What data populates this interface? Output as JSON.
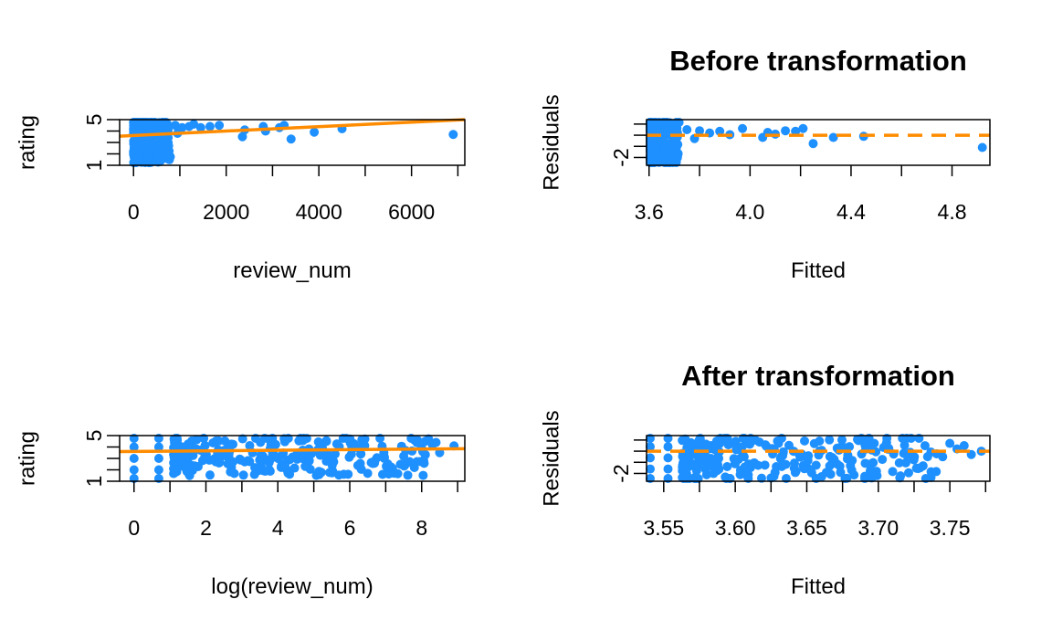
{
  "colors": {
    "points": "#1E90FF",
    "fit_line": "#FF8C00",
    "axis": "#000000",
    "background": "#FFFFFF"
  },
  "chart_data": [
    {
      "type": "scatter",
      "title": "",
      "xlabel": "review_num",
      "ylabel": "rating",
      "xlim": [
        -300,
        7150
      ],
      "ylim": [
        1,
        5
      ],
      "xticks": [
        0,
        1000,
        2000,
        3000,
        4000,
        5000,
        6000,
        7000
      ],
      "xtick_labels": [
        "0",
        "",
        "2000",
        "",
        "4000",
        "",
        "6000",
        ""
      ],
      "yticks": [
        1,
        2,
        3,
        4,
        5
      ],
      "ytick_labels": [
        "1",
        "",
        "",
        "",
        "5"
      ],
      "fit_line": {
        "x": [
          -300,
          7150
        ],
        "y": [
          3.55,
          5.0
        ],
        "style": "solid"
      },
      "points": [
        [
          1200,
          4.4
        ],
        [
          1300,
          4.6
        ],
        [
          1450,
          4.3
        ],
        [
          1650,
          4.4
        ],
        [
          1850,
          4.5
        ],
        [
          2350,
          3.5
        ],
        [
          2400,
          4.1
        ],
        [
          2800,
          4.4
        ],
        [
          2850,
          4.0
        ],
        [
          3150,
          4.3
        ],
        [
          3250,
          4.5
        ],
        [
          3400,
          3.3
        ],
        [
          3900,
          3.9
        ],
        [
          4500,
          4.2
        ],
        [
          6900,
          3.7
        ],
        [
          900,
          4.5
        ],
        [
          1050,
          4.3
        ],
        [
          750,
          4.4
        ],
        [
          600,
          4.1
        ],
        [
          950,
          3.8
        ]
      ],
      "dense_region": {
        "x": [
          0,
          800
        ],
        "y": [
          1,
          5
        ]
      }
    },
    {
      "type": "scatter",
      "title": "Before transformation",
      "xlabel": "Fitted",
      "ylabel": "Residuals",
      "xlim": [
        3.59,
        4.95
      ],
      "ylim": [
        -2.7,
        1.4
      ],
      "xticks": [
        3.6,
        3.8,
        4.0,
        4.2,
        4.4,
        4.6,
        4.8
      ],
      "xtick_labels": [
        "3.6",
        "",
        "4.0",
        "",
        "4.4",
        "",
        "4.8"
      ],
      "yticks": [
        -2,
        -1,
        0,
        1
      ],
      "ytick_labels": [
        "-2",
        "",
        "",
        ""
      ],
      "fit_line": {
        "x": [
          3.59,
          4.95
        ],
        "y": [
          0,
          0
        ],
        "style": "dashed"
      },
      "points": [
        [
          3.88,
          0.35
        ],
        [
          3.92,
          0.05
        ],
        [
          3.97,
          0.6
        ],
        [
          4.05,
          -0.2
        ],
        [
          4.07,
          0.25
        ],
        [
          4.1,
          0.1
        ],
        [
          4.14,
          0.4
        ],
        [
          4.18,
          0.35
        ],
        [
          4.21,
          0.6
        ],
        [
          4.25,
          -0.75
        ],
        [
          4.33,
          -0.2
        ],
        [
          4.45,
          -0.1
        ],
        [
          4.92,
          -1.1
        ],
        [
          3.8,
          0.4
        ],
        [
          3.84,
          0.2
        ],
        [
          3.75,
          0.5
        ],
        [
          3.78,
          -0.3
        ]
      ],
      "dense_region": {
        "x": [
          3.6,
          3.72
        ],
        "y": [
          -2.7,
          1.4
        ]
      }
    },
    {
      "type": "scatter",
      "title": "",
      "xlabel": "log(review_num)",
      "ylabel": "rating",
      "xlim": [
        -0.4,
        9.2
      ],
      "ylim": [
        1,
        5
      ],
      "xticks": [
        0,
        1,
        2,
        3,
        4,
        5,
        6,
        7,
        8,
        9
      ],
      "xtick_labels": [
        "0",
        "",
        "2",
        "",
        "4",
        "",
        "6",
        "",
        "8",
        ""
      ],
      "yticks": [
        1,
        2,
        3,
        4,
        5
      ],
      "ytick_labels": [
        "1",
        "",
        "",
        "",
        "5"
      ],
      "fit_line": {
        "x": [
          -0.4,
          9.2
        ],
        "y": [
          3.6,
          3.85
        ],
        "style": "solid"
      },
      "points": [
        [
          0,
          1
        ],
        [
          0,
          2
        ],
        [
          0,
          3
        ],
        [
          0,
          4
        ],
        [
          0,
          5
        ],
        [
          0.69,
          1
        ],
        [
          0.69,
          2
        ],
        [
          0.69,
          3
        ],
        [
          0.69,
          4
        ],
        [
          0.69,
          5
        ],
        [
          8.0,
          3.9
        ],
        [
          8.1,
          4.5
        ],
        [
          8.3,
          4.2
        ],
        [
          8.4,
          4.4
        ],
        [
          8.5,
          3.5
        ],
        [
          8.9,
          4.1
        ],
        [
          7.8,
          4.6
        ],
        [
          7.5,
          3.2
        ]
      ],
      "dense_region": {
        "x": [
          1.1,
          8.2
        ],
        "y": [
          1.5,
          5
        ]
      }
    },
    {
      "type": "scatter",
      "title": "After transformation",
      "xlabel": "Fitted",
      "ylabel": "Residuals",
      "xlim": [
        3.538,
        3.778
      ],
      "ylim": [
        -2.7,
        1.4
      ],
      "xticks": [
        3.55,
        3.575,
        3.6,
        3.625,
        3.65,
        3.675,
        3.7,
        3.725,
        3.75,
        3.775
      ],
      "xtick_labels": [
        "3.55",
        "",
        "3.60",
        "",
        "3.65",
        "",
        "3.70",
        "",
        "3.75",
        ""
      ],
      "yticks": [
        -2,
        -1,
        0,
        1
      ],
      "ytick_labels": [
        "-2",
        "",
        "",
        ""
      ],
      "fit_line": {
        "x": [
          3.538,
          3.778
        ],
        "y": [
          0,
          0
        ],
        "style": "dashed"
      },
      "points": [
        [
          3.54,
          -2.6
        ],
        [
          3.54,
          -1.6
        ],
        [
          3.54,
          -0.6
        ],
        [
          3.54,
          0.4
        ],
        [
          3.54,
          1.2
        ],
        [
          3.553,
          -2.6
        ],
        [
          3.553,
          -1.6
        ],
        [
          3.553,
          -0.6
        ],
        [
          3.553,
          0.4
        ],
        [
          3.553,
          1.2
        ],
        [
          3.755,
          0.2
        ],
        [
          3.76,
          0.5
        ],
        [
          3.765,
          -0.3
        ],
        [
          3.772,
          0.0
        ],
        [
          3.75,
          0.7
        ],
        [
          3.745,
          -0.5
        ]
      ],
      "dense_region": {
        "x": [
          3.563,
          3.745
        ],
        "y": [
          -2.7,
          1.4
        ]
      }
    }
  ]
}
